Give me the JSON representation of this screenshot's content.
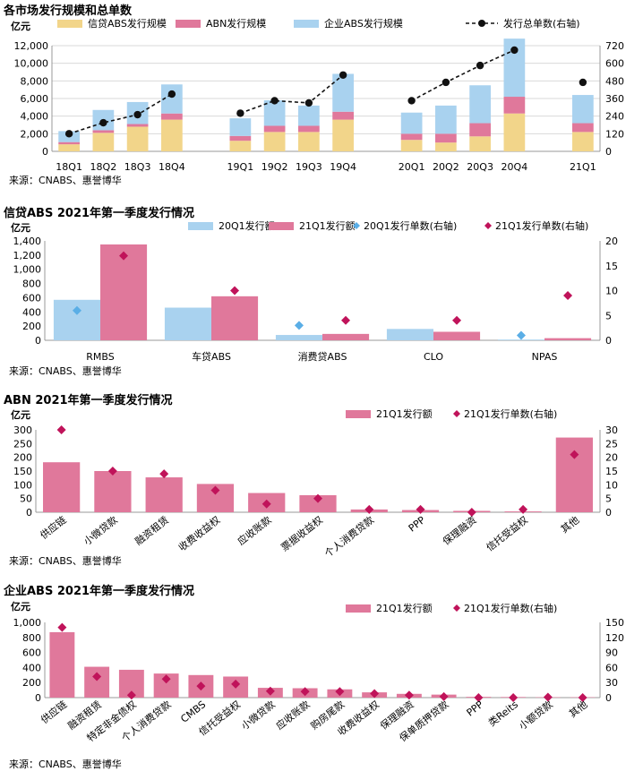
{
  "colors": {
    "credit": "#f2d58a",
    "abn": "#e0789b",
    "corp": "#a9d2ef",
    "line": "#111111",
    "diamond_blue": "#5aaee6",
    "diamond_red": "#c0135a",
    "grid": "#d9d9d9"
  },
  "chart_data": [
    {
      "type": "bar",
      "title": "各市场发行规模和总单数",
      "ylabel": "亿元",
      "stacked": true,
      "categories": [
        "18Q1",
        "18Q2",
        "18Q3",
        "18Q4",
        "",
        "19Q1",
        "19Q2",
        "19Q3",
        "19Q4",
        "",
        "20Q1",
        "20Q2",
        "20Q3",
        "20Q4",
        "",
        "21Q1"
      ],
      "series": [
        {
          "name": "信贷ABS发行规模",
          "values": [
            800,
            2100,
            2800,
            3600,
            null,
            1200,
            2200,
            2200,
            3600,
            null,
            1300,
            1000,
            1700,
            4300,
            null,
            2200
          ]
        },
        {
          "name": "ABN发行规模",
          "values": [
            250,
            300,
            300,
            700,
            null,
            550,
            700,
            700,
            900,
            null,
            700,
            1000,
            1500,
            1900,
            null,
            1000
          ]
        },
        {
          "name": "企业ABS发行规模",
          "values": [
            1250,
            2300,
            2500,
            3300,
            null,
            2000,
            2900,
            2300,
            4300,
            null,
            2400,
            3200,
            4300,
            6600,
            null,
            3200
          ]
        },
        {
          "name": "发行总单数(右轴)",
          "axis": "right",
          "values": [
            120,
            195,
            250,
            390,
            null,
            260,
            345,
            330,
            520,
            null,
            345,
            470,
            585,
            690,
            null,
            470
          ]
        }
      ],
      "ylim": [
        0,
        12000
      ],
      "yticks": [
        "0",
        "2,000",
        "4,000",
        "6,000",
        "8,000",
        "10,000",
        "12,000"
      ],
      "y2lim": [
        0,
        720
      ],
      "y2ticks": [
        "0",
        "120",
        "240",
        "360",
        "480",
        "600",
        "720"
      ],
      "legend": "top",
      "source": "来源：CNABS、惠誉博华"
    },
    {
      "type": "bar",
      "title": "信贷ABS 2021年第一季度发行情况",
      "ylabel": "亿元",
      "categories": [
        "RMBS",
        "车贷ABS",
        "消费贷ABS",
        "CLO",
        "NPAS"
      ],
      "series": [
        {
          "name": "20Q1发行额",
          "values": [
            570,
            460,
            75,
            160,
            10
          ]
        },
        {
          "name": "21Q1发行额",
          "values": [
            1350,
            620,
            90,
            120,
            30
          ]
        },
        {
          "name": "20Q1发行单数(右轴)",
          "axis": "right",
          "values": [
            6,
            null,
            3,
            null,
            1
          ]
        },
        {
          "name": "21Q1发行单数(右轴)",
          "axis": "right",
          "values": [
            17,
            10,
            4,
            4,
            9
          ]
        }
      ],
      "ylim": [
        0,
        1400
      ],
      "yticks": [
        "0",
        "200",
        "400",
        "600",
        "800",
        "1,000",
        "1,200",
        "1,400"
      ],
      "y2lim": [
        0,
        20
      ],
      "y2ticks": [
        "0",
        "5",
        "10",
        "15",
        "20"
      ],
      "legend": "top",
      "source": "来源：CNABS、惠誉博华"
    },
    {
      "type": "bar",
      "title": "ABN 2021年第一季度发行情况",
      "ylabel": "亿元",
      "categories": [
        "供应链",
        "小微贷款",
        "融资租赁",
        "收费收益权",
        "应收账款",
        "票据收益权",
        "个人消费贷款",
        "PPP",
        "保理融资",
        "信托受益权",
        "其他"
      ],
      "series": [
        {
          "name": "21Q1发行额",
          "values": [
            182,
            150,
            127,
            103,
            70,
            62,
            10,
            8,
            5,
            3,
            272
          ]
        },
        {
          "name": "21Q1发行单数(右轴)",
          "axis": "right",
          "values": [
            30,
            15,
            14,
            8,
            3,
            5,
            1,
            1,
            0,
            1,
            21
          ]
        }
      ],
      "ylim": [
        0,
        300
      ],
      "yticks": [
        "0",
        "50",
        "100",
        "150",
        "200",
        "250",
        "300"
      ],
      "y2lim": [
        0,
        30
      ],
      "y2ticks": [
        "0",
        "5",
        "10",
        "15",
        "20",
        "25",
        "30"
      ],
      "legend": "top",
      "source": "来源：CNABS、惠誉博华"
    },
    {
      "type": "bar",
      "title": "企业ABS 2021年第一季度发行情况",
      "ylabel": "亿元",
      "categories": [
        "供应链",
        "融资租赁",
        "特定非金债权",
        "个人消费贷款",
        "CMBS",
        "信托受益权",
        "小微贷款",
        "应收账款",
        "购房尾款",
        "收费收益权",
        "保理融资",
        "保单质押贷款",
        "PPP",
        "类Reits",
        "小额贷款",
        "其他"
      ],
      "series": [
        {
          "name": "21Q1发行额",
          "values": [
            870,
            410,
            370,
            320,
            300,
            280,
            130,
            125,
            110,
            70,
            50,
            40,
            10,
            8,
            5,
            5
          ]
        },
        {
          "name": "21Q1发行单数(右轴)",
          "axis": "right",
          "values": [
            140,
            42,
            5,
            37,
            23,
            27,
            13,
            12,
            12,
            8,
            5,
            2,
            0,
            0,
            1,
            0
          ]
        }
      ],
      "ylim": [
        0,
        1000
      ],
      "yticks": [
        "0",
        "200",
        "400",
        "600",
        "800",
        "1,000"
      ],
      "y2lim": [
        0,
        150
      ],
      "y2ticks": [
        "0",
        "30",
        "60",
        "90",
        "120",
        "150"
      ],
      "legend": "top",
      "source": "来源：CNABS、惠誉博华"
    }
  ]
}
